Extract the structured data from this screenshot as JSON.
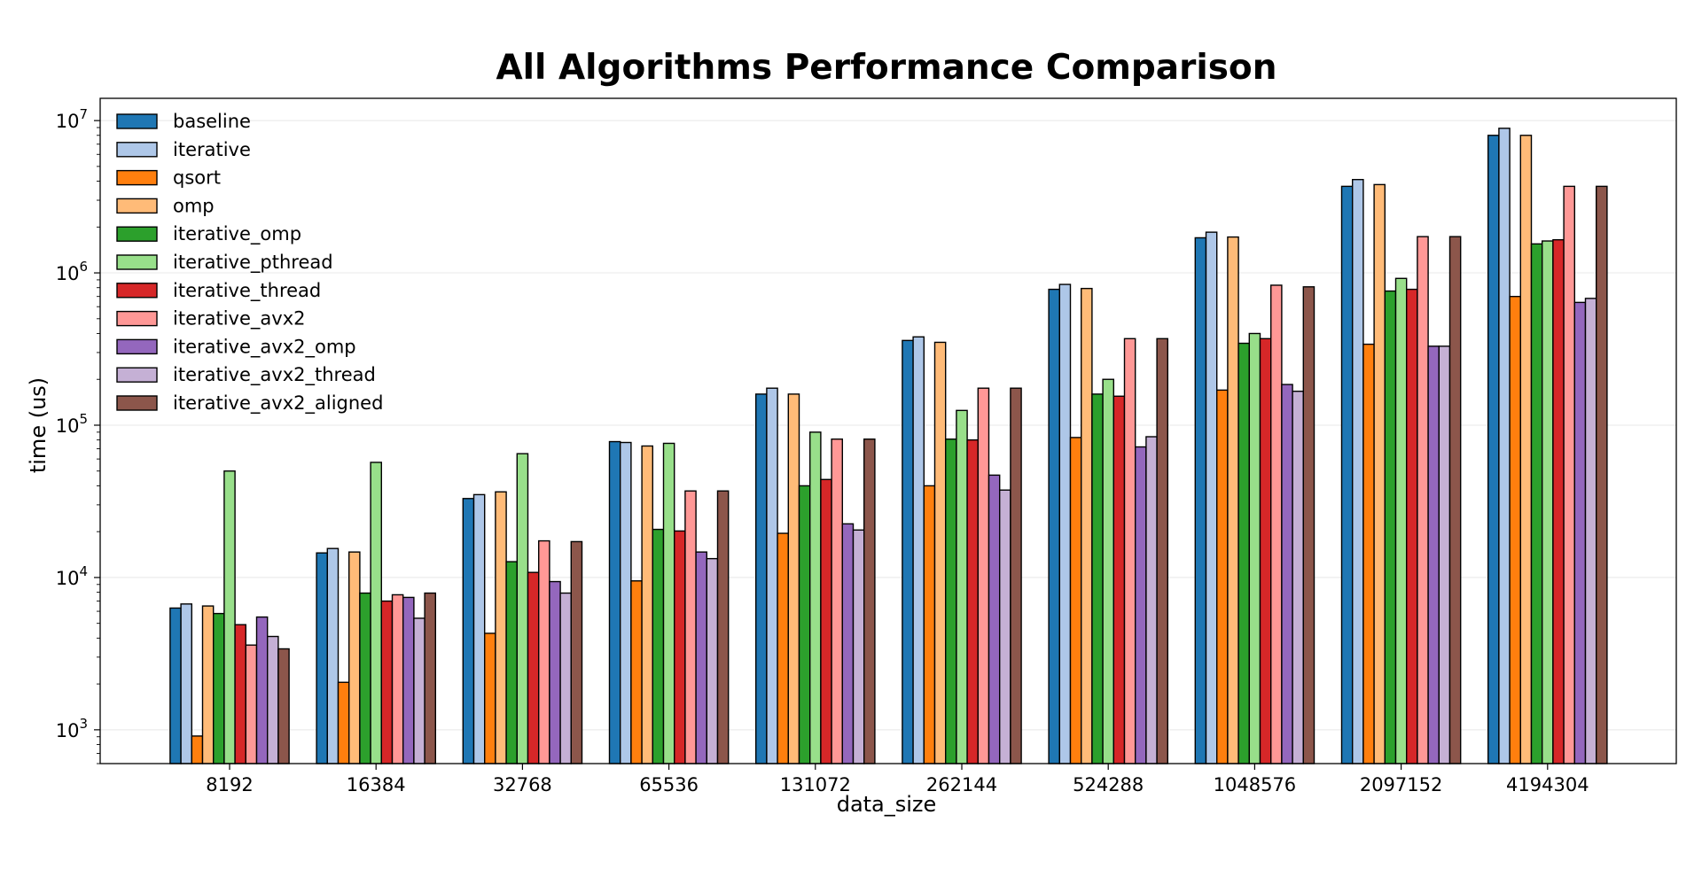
{
  "chart_data": {
    "type": "bar",
    "title": "All Algorithms Performance Comparison",
    "xlabel": "data_size",
    "ylabel": "time (us)",
    "yscale": "log",
    "ylim": [
      600,
      14000000
    ],
    "yticks": [
      {
        "value": 1000,
        "base": "10",
        "exp": "3"
      },
      {
        "value": 10000,
        "base": "10",
        "exp": "4"
      },
      {
        "value": 100000,
        "base": "10",
        "exp": "5"
      },
      {
        "value": 1000000,
        "base": "10",
        "exp": "6"
      },
      {
        "value": 10000000,
        "base": "10",
        "exp": "7"
      }
    ],
    "grid": true,
    "legend_position": "top-left",
    "categories": [
      "8192",
      "16384",
      "32768",
      "65536",
      "131072",
      "262144",
      "524288",
      "1048576",
      "2097152",
      "4194304"
    ],
    "series": [
      {
        "name": "baseline",
        "color": "#1f77b4",
        "values": [
          6300,
          14500,
          33000,
          78000,
          160000,
          360000,
          780000,
          1700000,
          3700000,
          8000000
        ]
      },
      {
        "name": "iterative",
        "color": "#aec7e8",
        "values": [
          6700,
          15500,
          35000,
          77000,
          175000,
          380000,
          840000,
          1850000,
          4100000,
          8900000
        ]
      },
      {
        "name": "qsort",
        "color": "#ff7f0e",
        "values": [
          910,
          2050,
          4300,
          9500,
          19500,
          40000,
          83000,
          170000,
          340000,
          700000
        ]
      },
      {
        "name": "omp",
        "color": "#ffbb78",
        "values": [
          6500,
          14700,
          36500,
          73000,
          160000,
          350000,
          790000,
          1720000,
          3800000,
          8000000
        ]
      },
      {
        "name": "iterative_omp",
        "color": "#2ca02c",
        "values": [
          5800,
          7900,
          12700,
          20700,
          40000,
          81000,
          160000,
          345000,
          760000,
          1550000
        ]
      },
      {
        "name": "iterative_pthread",
        "color": "#98df8a",
        "values": [
          50000,
          57000,
          65000,
          76000,
          90000,
          125000,
          200000,
          400000,
          920000,
          1620000
        ]
      },
      {
        "name": "iterative_thread",
        "color": "#d62728",
        "values": [
          4900,
          7000,
          10800,
          20200,
          44000,
          80000,
          155000,
          370000,
          780000,
          1650000
        ]
      },
      {
        "name": "iterative_avx2",
        "color": "#ff9896",
        "values": [
          3600,
          7700,
          17400,
          37000,
          81000,
          175000,
          370000,
          830000,
          1730000,
          3700000
        ]
      },
      {
        "name": "iterative_avx2_omp",
        "color": "#9467bd",
        "values": [
          5500,
          7400,
          9400,
          14700,
          22500,
          47000,
          72000,
          185000,
          330000,
          640000
        ]
      },
      {
        "name": "iterative_avx2_thread",
        "color": "#c5b0d5",
        "values": [
          4100,
          5400,
          7900,
          13300,
          20500,
          37500,
          84000,
          167000,
          330000,
          680000
        ]
      },
      {
        "name": "iterative_avx2_aligned",
        "color": "#8c564b",
        "values": [
          3400,
          7900,
          17200,
          37000,
          81000,
          175000,
          370000,
          810000,
          1730000,
          3700000
        ]
      }
    ]
  }
}
